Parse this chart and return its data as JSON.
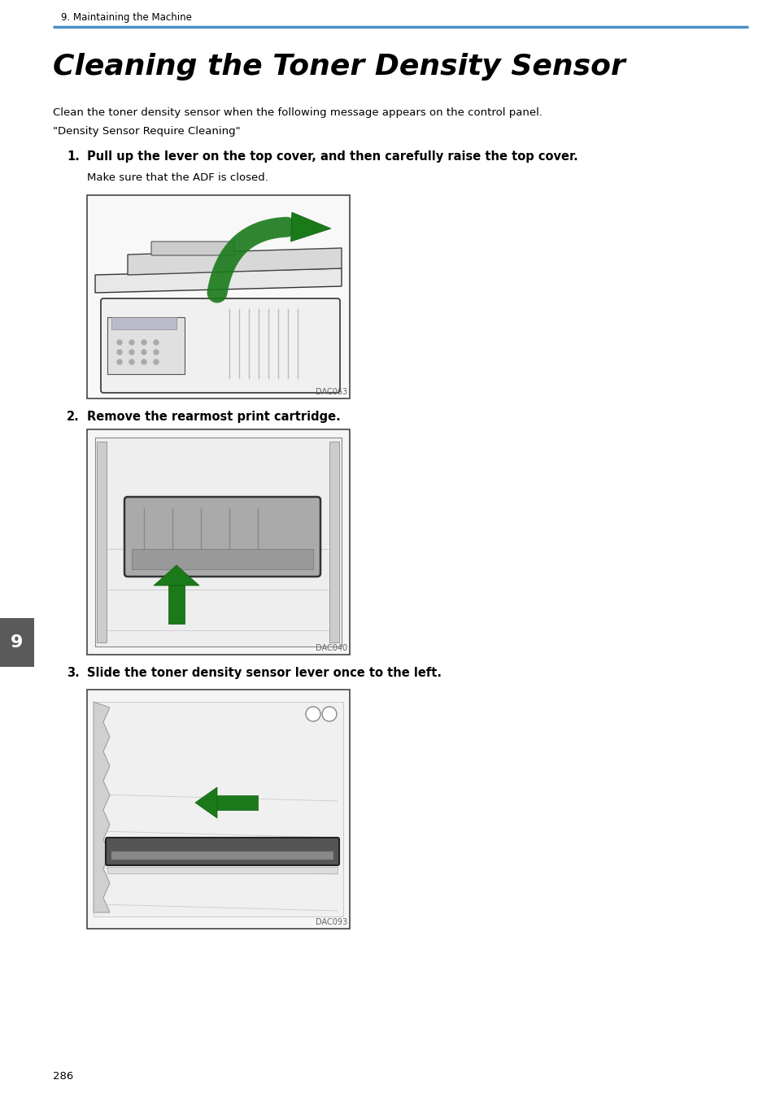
{
  "bg_color": "#ffffff",
  "header_text": "9. Maintaining the Machine",
  "header_line_color": "#4a90c4",
  "header_fontsize": 8.5,
  "title": "Cleaning the Toner Density Sensor",
  "title_fontsize": 26,
  "body_intro": "Clean the toner density sensor when the following message appears on the control panel.",
  "body_intro2": "\"Density Sensor Require Cleaning\"",
  "step1_num": "1.",
  "step1_bold": "Pull up the lever on the top cover, and then carefully raise the top cover.",
  "step1_sub": "Make sure that the ADF is closed.",
  "step2_num": "2.",
  "step2_bold": "Remove the rearmost print cartridge.",
  "step3_num": "3.",
  "step3_bold": "Slide the toner density sensor lever once to the left.",
  "img1_label": "DAC063",
  "img2_label": "DAC040",
  "img3_label": "DAC093",
  "page_number": "286",
  "tab_number": "9",
  "tab_color": "#5a5a5a",
  "tab_text_color": "#ffffff",
  "text_color": "#000000",
  "step_bold_fontsize": 10.5,
  "body_fontsize": 9.5,
  "img_label_fontsize": 7,
  "green_color": "#1a7a1a",
  "green_edge": "#0d5a0d"
}
